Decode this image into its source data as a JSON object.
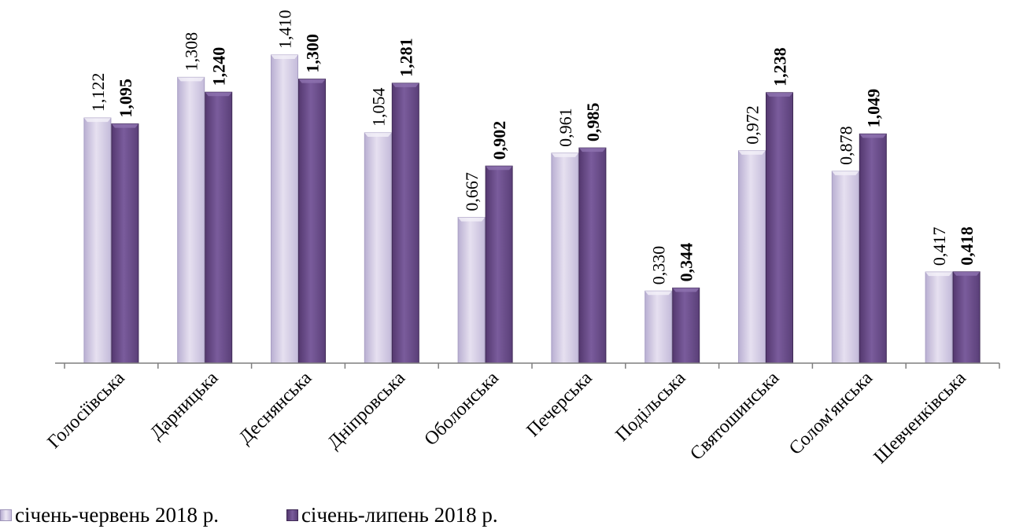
{
  "chart_data": {
    "type": "bar",
    "categories": [
      "Голосіївська",
      "Дарницька",
      "Деснянська",
      "Дніпровська",
      "Оболонська",
      "Печерська",
      "Подільська",
      "Святошинська",
      "Солом'янська",
      "Шевченківська"
    ],
    "series": [
      {
        "name": "січень-червень 2018 р.",
        "values": [
          1.122,
          1.308,
          1.41,
          1.054,
          0.667,
          0.961,
          0.33,
          0.972,
          0.878,
          0.417
        ],
        "labels": [
          "1,122",
          "1,308",
          "1,410",
          "1,054",
          "0,667",
          "0,961",
          "0,330",
          "0,972",
          "0,878",
          "0,417"
        ],
        "color": "#cfc6e2"
      },
      {
        "name": "січень-липень 2018 р.",
        "values": [
          1.095,
          1.24,
          1.3,
          1.281,
          0.902,
          0.985,
          0.344,
          1.238,
          1.049,
          0.418
        ],
        "labels": [
          "1,095",
          "1,240",
          "1,300",
          "1,281",
          "0,902",
          "0,985",
          "0,344",
          "1,238",
          "1,049",
          "0,418"
        ],
        "color": "#6a4d8c"
      }
    ],
    "ylim": [
      0,
      1.41
    ],
    "grid": false,
    "legend_position": "bottom-left"
  }
}
